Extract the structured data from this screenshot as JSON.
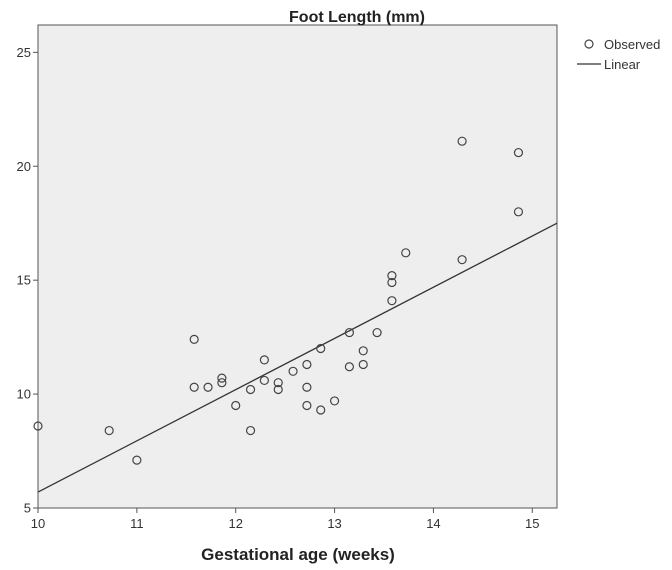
{
  "chart_data": {
    "type": "scatter",
    "title": "Foot Length (mm)",
    "xlabel": "Gestational age (weeks)",
    "ylabel": "",
    "xlim": [
      10,
      15.25
    ],
    "ylim": [
      5,
      26.2
    ],
    "xticks": [
      10,
      11,
      12,
      13,
      14,
      15
    ],
    "yticks": [
      5,
      10,
      15,
      20,
      25
    ],
    "grid": false,
    "legend_position": "top-right-outside",
    "colors": {
      "plot_bg": "#eeeeee",
      "marker": "#444444",
      "line": "#333333"
    },
    "series": [
      {
        "name": "Observed",
        "kind": "points",
        "points": [
          [
            10.0,
            8.6
          ],
          [
            10.72,
            8.4
          ],
          [
            11.0,
            7.1
          ],
          [
            11.58,
            12.4
          ],
          [
            11.58,
            10.3
          ],
          [
            11.72,
            10.3
          ],
          [
            11.86,
            10.7
          ],
          [
            11.86,
            10.5
          ],
          [
            12.0,
            9.5
          ],
          [
            12.15,
            10.2
          ],
          [
            12.15,
            8.4
          ],
          [
            12.29,
            11.5
          ],
          [
            12.29,
            10.6
          ],
          [
            12.43,
            10.5
          ],
          [
            12.43,
            10.2
          ],
          [
            12.58,
            11.0
          ],
          [
            12.72,
            11.3
          ],
          [
            12.72,
            10.3
          ],
          [
            12.72,
            9.5
          ],
          [
            12.86,
            12.0
          ],
          [
            12.86,
            9.3
          ],
          [
            13.0,
            9.7
          ],
          [
            13.15,
            12.7
          ],
          [
            13.15,
            11.2
          ],
          [
            13.29,
            11.9
          ],
          [
            13.29,
            11.3
          ],
          [
            13.43,
            12.7
          ],
          [
            13.58,
            15.2
          ],
          [
            13.58,
            14.9
          ],
          [
            13.58,
            14.1
          ],
          [
            13.72,
            16.2
          ],
          [
            14.29,
            21.1
          ],
          [
            14.29,
            15.9
          ],
          [
            14.86,
            20.6
          ],
          [
            14.86,
            18.0
          ]
        ]
      },
      {
        "name": "Linear",
        "kind": "line",
        "points": [
          [
            10.0,
            5.7
          ],
          [
            15.25,
            17.5
          ]
        ]
      }
    ]
  }
}
